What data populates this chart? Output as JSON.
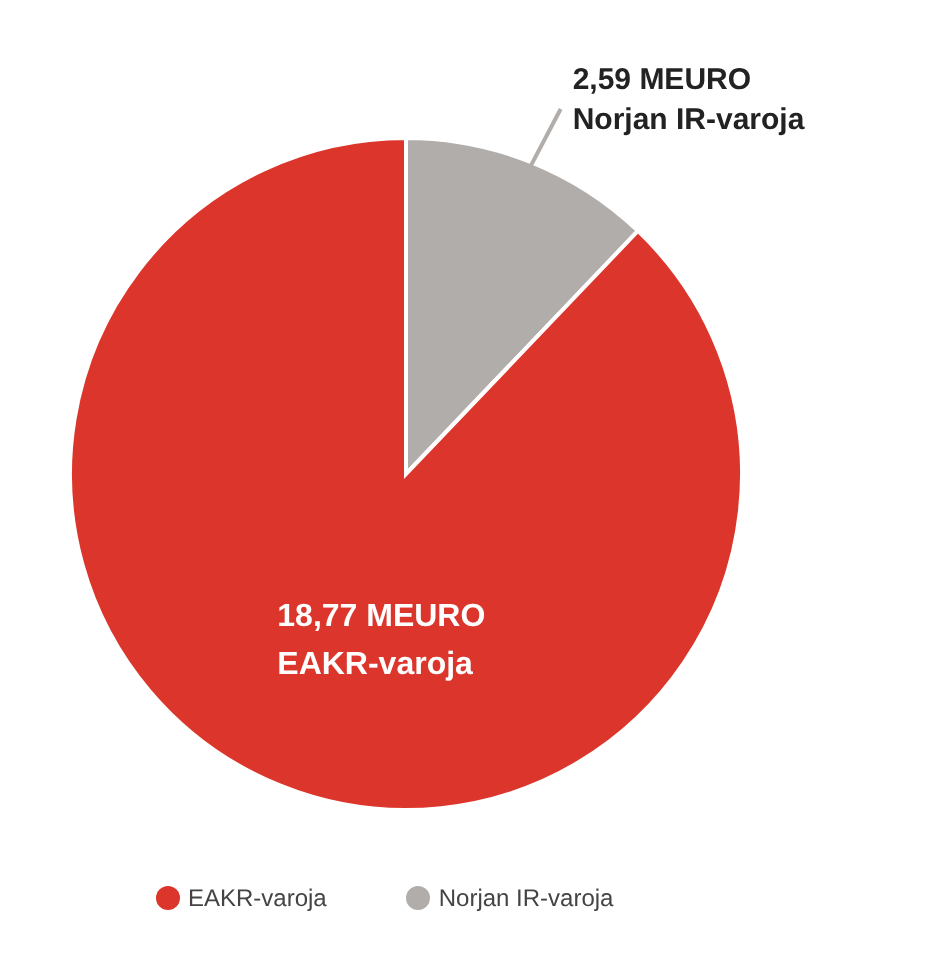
{
  "chart_data": {
    "type": "pie",
    "categories": [
      "Norjan IR-varoja",
      "EAKR-varoja"
    ],
    "values": [
      2.59,
      18.77
    ],
    "colors": [
      "#b0adab",
      "#dc352b"
    ],
    "value_labels": [
      "2,59 MEURO",
      "18,77 MEURO"
    ],
    "legend": "bottom"
  }
}
